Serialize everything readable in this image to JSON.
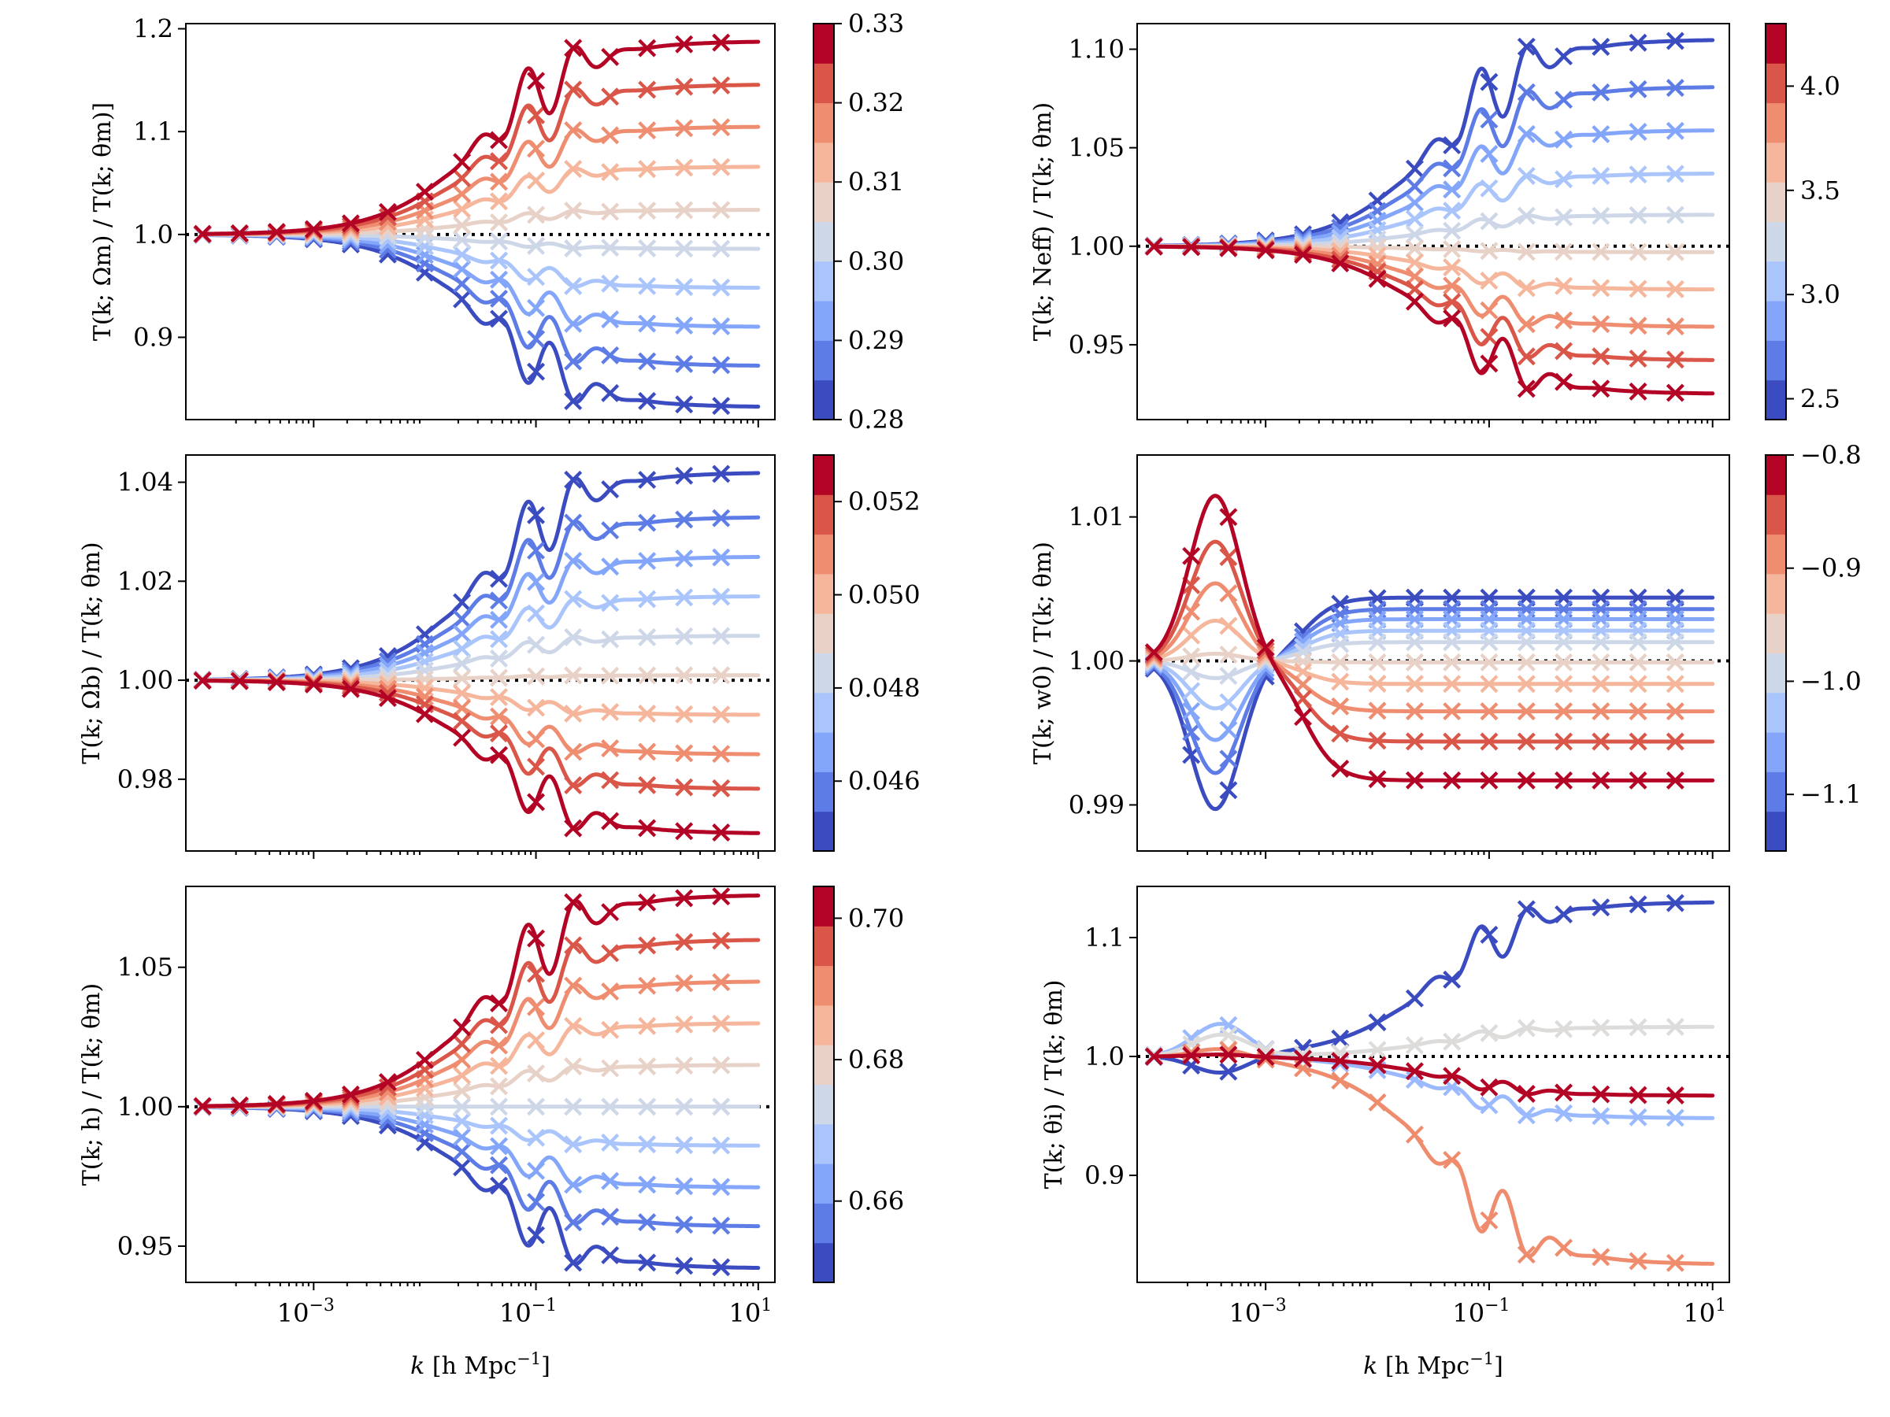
{
  "figure": {
    "xlabel_k": "k",
    "xlabel_rest": " [h Mpc",
    "xlabel_sup": "−1",
    "xlabel_end": "]"
  },
  "chart_data": [
    {
      "type": "line",
      "id": "omega_m",
      "ylabel": "T(k; Ωm) / T(k; θm)]",
      "ylim": [
        0.82,
        1.205
      ],
      "yticks": [
        0.9,
        1.0,
        1.1,
        1.2
      ],
      "ytick_labels": [
        "0.9",
        "1.0",
        "1.1",
        "1.2"
      ],
      "colorbar": {
        "range": [
          0.28,
          0.33
        ],
        "ticks": [
          0.28,
          0.29,
          0.3,
          0.31,
          0.32,
          0.33
        ],
        "tick_labels": [
          "0.28",
          "0.29",
          "0.30",
          "0.31",
          "0.32",
          "0.33"
        ]
      },
      "series": [
        {
          "name": "0.280",
          "amplitude": -0.168
        },
        {
          "name": "0.286",
          "amplitude": -0.128
        },
        {
          "name": "0.291",
          "amplitude": -0.09
        },
        {
          "name": "0.297",
          "amplitude": -0.052
        },
        {
          "name": "0.302",
          "amplitude": -0.014
        },
        {
          "name": "0.308",
          "amplitude": 0.024
        },
        {
          "name": "0.314",
          "amplitude": 0.066
        },
        {
          "name": "0.319",
          "amplitude": 0.105
        },
        {
          "name": "0.325",
          "amplitude": 0.146
        },
        {
          "name": "0.330",
          "amplitude": 0.188
        }
      ]
    },
    {
      "type": "line",
      "id": "n_eff",
      "ylabel": "T(k; Neff) / T(k; θm)",
      "ylim": [
        0.912,
        1.113
      ],
      "yticks": [
        0.95,
        1.0,
        1.05,
        1.1
      ],
      "ytick_labels": [
        "0.95",
        "1.00",
        "1.05",
        "1.10"
      ],
      "colorbar": {
        "range": [
          2.4,
          4.3
        ],
        "ticks": [
          2.5,
          3.0,
          3.5,
          4.0
        ],
        "tick_labels": [
          "2.5",
          "3.0",
          "3.5",
          "4.0"
        ]
      },
      "series": [
        {
          "name": "2.40",
          "amplitude": 0.105
        },
        {
          "name": "2.61",
          "amplitude": 0.081
        },
        {
          "name": "2.82",
          "amplitude": 0.059
        },
        {
          "name": "3.03",
          "amplitude": 0.037
        },
        {
          "name": "3.24",
          "amplitude": 0.016
        },
        {
          "name": "3.46",
          "amplitude": -0.003
        },
        {
          "name": "3.67",
          "amplitude": -0.022
        },
        {
          "name": "3.88",
          "amplitude": -0.041
        },
        {
          "name": "4.09",
          "amplitude": -0.058
        },
        {
          "name": "4.30",
          "amplitude": -0.075
        }
      ]
    },
    {
      "type": "line",
      "id": "omega_b",
      "ylabel": "T(k; Ωb) / T(k; θm)",
      "ylim": [
        0.9655,
        1.0455
      ],
      "yticks": [
        0.98,
        1.0,
        1.02,
        1.04
      ],
      "ytick_labels": [
        "0.98",
        "1.00",
        "1.02",
        "1.04"
      ],
      "colorbar": {
        "range": [
          0.0445,
          0.053
        ],
        "ticks": [
          0.046,
          0.048,
          0.05,
          0.052
        ],
        "tick_labels": [
          "0.046",
          "0.048",
          "0.050",
          "0.052"
        ]
      },
      "series": [
        {
          "name": "0.0445",
          "amplitude": 0.042
        },
        {
          "name": "0.0454",
          "amplitude": 0.033
        },
        {
          "name": "0.0464",
          "amplitude": 0.025
        },
        {
          "name": "0.0473",
          "amplitude": 0.017
        },
        {
          "name": "0.0483",
          "amplitude": 0.009
        },
        {
          "name": "0.0492",
          "amplitude": 0.001
        },
        {
          "name": "0.0502",
          "amplitude": -0.007
        },
        {
          "name": "0.0511",
          "amplitude": -0.015
        },
        {
          "name": "0.0521",
          "amplitude": -0.022
        },
        {
          "name": "0.0530",
          "amplitude": -0.031
        }
      ]
    },
    {
      "type": "line",
      "id": "w0",
      "ylabel": "T(k; w0) / T(k; θm)",
      "ylim": [
        0.9868,
        1.0143
      ],
      "yticks": [
        0.99,
        1.0,
        1.01
      ],
      "ytick_labels": [
        "0.99",
        "1.00",
        "1.01"
      ],
      "colorbar": {
        "range": [
          -1.15,
          -0.8
        ],
        "ticks": [
          -1.1,
          -1.0,
          -0.9,
          -0.8
        ],
        "tick_labels": [
          "−1.1",
          "−1.0",
          "−0.9",
          "−0.8"
        ]
      },
      "series": [
        {
          "name": "-1.150",
          "bump": -0.0103,
          "plateau": 0.0044
        },
        {
          "name": "-1.111",
          "bump": -0.0078,
          "plateau": 0.0036
        },
        {
          "name": "-1.072",
          "bump": -0.0055,
          "plateau": 0.0029
        },
        {
          "name": "-1.033",
          "bump": -0.0033,
          "plateau": 0.0021
        },
        {
          "name": "-0.994",
          "bump": -0.0012,
          "plateau": 0.0013
        },
        {
          "name": "-0.956",
          "bump": 0.0005,
          "plateau": -0.0001
        },
        {
          "name": "-0.917",
          "bump": 0.0028,
          "plateau": -0.0016
        },
        {
          "name": "-0.878",
          "bump": 0.0054,
          "plateau": -0.0035
        },
        {
          "name": "-0.839",
          "bump": 0.0083,
          "plateau": -0.0056
        },
        {
          "name": "-0.800",
          "bump": 0.0115,
          "plateau": -0.0083
        }
      ]
    },
    {
      "type": "line",
      "id": "h",
      "ylabel": "T(k; h) / T(k; θm)",
      "ylim": [
        0.937,
        1.079
      ],
      "yticks": [
        0.95,
        1.0,
        1.05
      ],
      "ytick_labels": [
        "0.95",
        "1.00",
        "1.05"
      ],
      "colorbar": {
        "range": [
          0.6485,
          0.7045
        ],
        "ticks": [
          0.66,
          0.68,
          0.7
        ],
        "tick_labels": [
          "0.66",
          "0.68",
          "0.70"
        ]
      },
      "series": [
        {
          "name": "0.6485",
          "amplitude": -0.058
        },
        {
          "name": "0.6547",
          "amplitude": -0.043
        },
        {
          "name": "0.6609",
          "amplitude": -0.029
        },
        {
          "name": "0.6672",
          "amplitude": -0.014
        },
        {
          "name": "0.6734",
          "amplitude": 0.0
        },
        {
          "name": "0.6796",
          "amplitude": 0.015
        },
        {
          "name": "0.6858",
          "amplitude": 0.03
        },
        {
          "name": "0.6920",
          "amplitude": 0.045
        },
        {
          "name": "0.6983",
          "amplitude": 0.06
        },
        {
          "name": "0.7045",
          "amplitude": 0.076
        }
      ]
    },
    {
      "type": "line",
      "id": "theta_i",
      "ylabel": "T(k; θi) / T(k; θm)",
      "ylim": [
        0.81,
        1.143
      ],
      "yticks": [
        0.9,
        1.0,
        1.1
      ],
      "ytick_labels": [
        "0.9",
        "1.0",
        "1.1"
      ],
      "series": [
        {
          "name": "deep blue",
          "color": "#3b4cc0",
          "bump": -0.015,
          "amplitude": 0.13
        },
        {
          "name": "light blue",
          "color": "#9ab9fe",
          "bump": 0.028,
          "amplitude": -0.052
        },
        {
          "name": "light grey",
          "color": "#dddcdb",
          "bump": 0.018,
          "amplitude": 0.025
        },
        {
          "name": "salmon",
          "color": "#ef8c6e",
          "bump": 0.008,
          "amplitude": -0.175
        },
        {
          "name": "dark red",
          "color": "#b40426",
          "bump": 0.002,
          "amplitude": -0.033
        }
      ]
    }
  ],
  "shared_x": {
    "type": "log",
    "xlim": [
      -4.15,
      1.15
    ],
    "ticks": [
      -3,
      -1,
      1
    ],
    "tick_labels": [
      "10",
      "10",
      "10"
    ],
    "tick_exponents": [
      "−3",
      "−1",
      "1"
    ],
    "marker_log_k": [
      -4,
      -3.666,
      -3.333,
      -3,
      -2.666,
      -2.333,
      -2,
      -1.666,
      -1.333,
      -1,
      -0.666,
      -0.333,
      0,
      0.333,
      0.666
    ]
  },
  "colormap": "coolwarm"
}
